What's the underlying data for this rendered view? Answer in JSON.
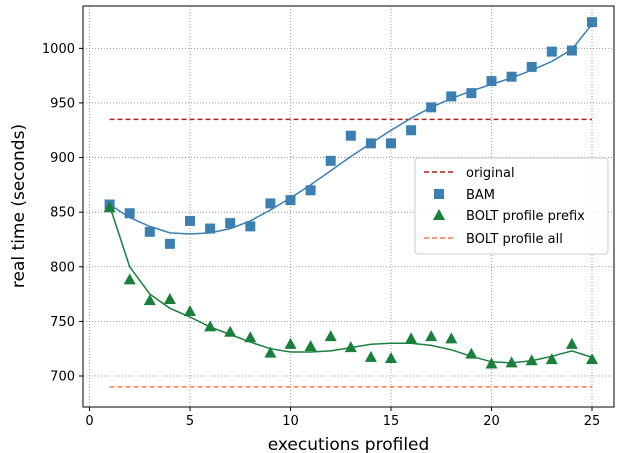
{
  "chart_data": {
    "type": "scatter",
    "title": "",
    "xlabel": "executions profiled",
    "ylabel": "real time (seconds)",
    "xlim": [
      0,
      26
    ],
    "ylim": [
      685,
      1045
    ],
    "xticks": [
      0,
      5,
      10,
      15,
      20,
      25
    ],
    "yticks": [
      700,
      750,
      800,
      850,
      900,
      950,
      1000
    ],
    "grid": true,
    "legend_position": "center-right",
    "series": [
      {
        "name": "original",
        "kind": "dashed-line",
        "color": "#b22222",
        "x": [
          1,
          25
        ],
        "y": [
          935,
          935
        ]
      },
      {
        "name": "BAM",
        "kind": "square-markers",
        "color": "#3c7fb1",
        "x": [
          1,
          2,
          3,
          4,
          5,
          6,
          7,
          8,
          9,
          10,
          11,
          12,
          13,
          14,
          15,
          16,
          17,
          18,
          19,
          20,
          21,
          22,
          23,
          24,
          25
        ],
        "y": [
          857,
          849,
          832,
          821,
          842,
          835,
          840,
          837,
          858,
          861,
          870,
          897,
          920,
          913,
          913,
          925,
          946,
          956,
          959,
          970,
          974,
          983,
          997,
          998,
          1024
        ],
        "trend": [
          857,
          845,
          837,
          831,
          830,
          831,
          835,
          842,
          852,
          863,
          875,
          888,
          901,
          913,
          925,
          936,
          946,
          954,
          961,
          967,
          973,
          980,
          988,
          999,
          1022
        ]
      },
      {
        "name": "BOLT profile prefix",
        "kind": "triangle-markers",
        "color": "#1a7f3c",
        "x": [
          1,
          2,
          3,
          4,
          5,
          6,
          7,
          8,
          9,
          10,
          11,
          12,
          13,
          14,
          15,
          16,
          17,
          18,
          19,
          20,
          21,
          22,
          23,
          24,
          25
        ],
        "y": [
          854,
          788,
          769,
          770,
          759,
          745,
          740,
          735,
          721,
          729,
          727,
          736,
          726,
          717,
          716,
          734,
          736,
          734,
          720,
          711,
          712,
          714,
          715,
          729,
          715
        ],
        "trend": [
          856,
          800,
          775,
          762,
          754,
          745,
          738,
          731,
          725,
          722,
          722,
          723,
          726,
          729,
          730,
          730,
          728,
          724,
          718,
          713,
          712,
          714,
          718,
          723,
          717
        ]
      },
      {
        "name": "BOLT profile all",
        "kind": "dashed-line",
        "color": "#f07c54",
        "x": [
          1,
          25
        ],
        "y": [
          690,
          690
        ]
      }
    ]
  }
}
